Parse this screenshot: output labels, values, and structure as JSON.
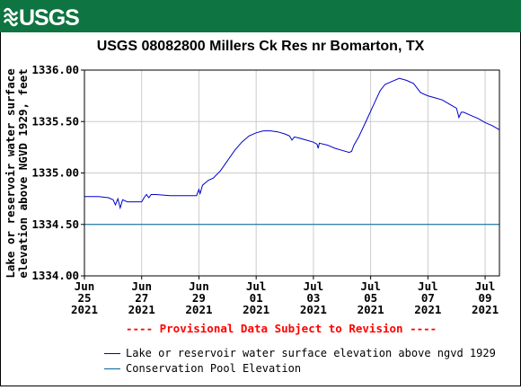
{
  "header": {
    "logo_text": "USGS",
    "brand_color": "#0e7441"
  },
  "chart_data": {
    "type": "line",
    "title": "USGS 08082800 Millers Ck Res nr Bomarton, TX",
    "ylabel_line1": "Lake or reservoir water surface",
    "ylabel_line2": "elevation above NGVD 1929, feet",
    "xlabel": "",
    "ylim": [
      1334.0,
      1336.0
    ],
    "yticks": [
      "1334.00",
      "1334.50",
      "1335.00",
      "1335.50",
      "1336.00"
    ],
    "xlim": [
      "2021-06-25T00:00",
      "2021-07-09T12:00"
    ],
    "xticks": [
      {
        "date": "2021-06-25",
        "month": "Jun",
        "day": "25",
        "year": "2021"
      },
      {
        "date": "2021-06-27",
        "month": "Jun",
        "day": "27",
        "year": "2021"
      },
      {
        "date": "2021-06-29",
        "month": "Jun",
        "day": "29",
        "year": "2021"
      },
      {
        "date": "2021-07-01",
        "month": "Jul",
        "day": "01",
        "year": "2021"
      },
      {
        "date": "2021-07-03",
        "month": "Jul",
        "day": "03",
        "year": "2021"
      },
      {
        "date": "2021-07-05",
        "month": "Jul",
        "day": "05",
        "year": "2021"
      },
      {
        "date": "2021-07-07",
        "month": "Jul",
        "day": "07",
        "year": "2021"
      },
      {
        "date": "2021-07-09",
        "month": "Jul",
        "day": "09",
        "year": "2021"
      }
    ],
    "grid": true,
    "legend_position": "bottom",
    "series": [
      {
        "name": "Lake or reservoir water surface elevation above ngvd 1929",
        "color": "#0000cc",
        "points": [
          [
            "2021-06-25T00:00",
            1334.77
          ],
          [
            "2021-06-25T12:00",
            1334.77
          ],
          [
            "2021-06-25T20:00",
            1334.76
          ],
          [
            "2021-06-26T00:00",
            1334.74
          ],
          [
            "2021-06-26T02:00",
            1334.69
          ],
          [
            "2021-06-26T04:00",
            1334.75
          ],
          [
            "2021-06-26T06:00",
            1334.66
          ],
          [
            "2021-06-26T08:00",
            1334.74
          ],
          [
            "2021-06-26T12:00",
            1334.72
          ],
          [
            "2021-06-26T18:00",
            1334.72
          ],
          [
            "2021-06-27T00:00",
            1334.72
          ],
          [
            "2021-06-27T02:00",
            1334.76
          ],
          [
            "2021-06-27T04:00",
            1334.79
          ],
          [
            "2021-06-27T06:00",
            1334.76
          ],
          [
            "2021-06-27T08:00",
            1334.79
          ],
          [
            "2021-06-27T12:00",
            1334.79
          ],
          [
            "2021-06-28T00:00",
            1334.78
          ],
          [
            "2021-06-28T12:00",
            1334.78
          ],
          [
            "2021-06-28T22:00",
            1334.78
          ],
          [
            "2021-06-29T00:00",
            1334.84
          ],
          [
            "2021-06-29T01:00",
            1334.8
          ],
          [
            "2021-06-29T03:00",
            1334.88
          ],
          [
            "2021-06-29T05:00",
            1334.9
          ],
          [
            "2021-06-29T08:00",
            1334.93
          ],
          [
            "2021-06-29T12:00",
            1334.95
          ],
          [
            "2021-06-29T18:00",
            1335.02
          ],
          [
            "2021-06-30T00:00",
            1335.12
          ],
          [
            "2021-06-30T06:00",
            1335.22
          ],
          [
            "2021-06-30T12:00",
            1335.3
          ],
          [
            "2021-06-30T18:00",
            1335.36
          ],
          [
            "2021-07-01T00:00",
            1335.39
          ],
          [
            "2021-07-01T06:00",
            1335.41
          ],
          [
            "2021-07-01T12:00",
            1335.41
          ],
          [
            "2021-07-01T18:00",
            1335.4
          ],
          [
            "2021-07-02T00:00",
            1335.38
          ],
          [
            "2021-07-02T04:00",
            1335.36
          ],
          [
            "2021-07-02T06:00",
            1335.32
          ],
          [
            "2021-07-02T08:00",
            1335.35
          ],
          [
            "2021-07-02T12:00",
            1335.34
          ],
          [
            "2021-07-02T18:00",
            1335.32
          ],
          [
            "2021-07-03T00:00",
            1335.3
          ],
          [
            "2021-07-03T03:00",
            1335.28
          ],
          [
            "2021-07-03T04:00",
            1335.24
          ],
          [
            "2021-07-03T05:00",
            1335.29
          ],
          [
            "2021-07-03T12:00",
            1335.27
          ],
          [
            "2021-07-03T18:00",
            1335.24
          ],
          [
            "2021-07-04T00:00",
            1335.22
          ],
          [
            "2021-07-04T06:00",
            1335.2
          ],
          [
            "2021-07-04T08:00",
            1335.21
          ],
          [
            "2021-07-04T10:00",
            1335.27
          ],
          [
            "2021-07-04T14:00",
            1335.35
          ],
          [
            "2021-07-04T18:00",
            1335.45
          ],
          [
            "2021-07-04T22:00",
            1335.55
          ],
          [
            "2021-07-05T00:00",
            1335.6
          ],
          [
            "2021-07-05T04:00",
            1335.7
          ],
          [
            "2021-07-05T08:00",
            1335.8
          ],
          [
            "2021-07-05T12:00",
            1335.86
          ],
          [
            "2021-07-05T18:00",
            1335.89
          ],
          [
            "2021-07-06T00:00",
            1335.92
          ],
          [
            "2021-07-06T06:00",
            1335.9
          ],
          [
            "2021-07-06T12:00",
            1335.87
          ],
          [
            "2021-07-06T16:00",
            1335.81
          ],
          [
            "2021-07-06T18:00",
            1335.78
          ],
          [
            "2021-07-07T00:00",
            1335.75
          ],
          [
            "2021-07-07T06:00",
            1335.73
          ],
          [
            "2021-07-07T12:00",
            1335.71
          ],
          [
            "2021-07-07T18:00",
            1335.67
          ],
          [
            "2021-07-08T00:00",
            1335.63
          ],
          [
            "2021-07-08T02:00",
            1335.54
          ],
          [
            "2021-07-08T04:00",
            1335.59
          ],
          [
            "2021-07-08T06:00",
            1335.59
          ],
          [
            "2021-07-08T12:00",
            1335.56
          ],
          [
            "2021-07-08T18:00",
            1335.53
          ],
          [
            "2021-07-09T00:00",
            1335.49
          ],
          [
            "2021-07-09T06:00",
            1335.46
          ],
          [
            "2021-07-09T12:00",
            1335.42
          ]
        ]
      },
      {
        "name": "Conservation Pool Elevation",
        "color": "#00649a",
        "points": [
          [
            "2021-06-25T00:00",
            1334.5
          ],
          [
            "2021-07-09T12:00",
            1334.5
          ]
        ]
      }
    ]
  },
  "provisional_notice": "---- Provisional Data Subject to Revision ----",
  "legend": {
    "items": [
      {
        "label": "Lake or reservoir water surface elevation above ngvd 1929",
        "color": "#0000cc"
      },
      {
        "label": "Conservation Pool Elevation",
        "color": "#00649a"
      }
    ]
  }
}
